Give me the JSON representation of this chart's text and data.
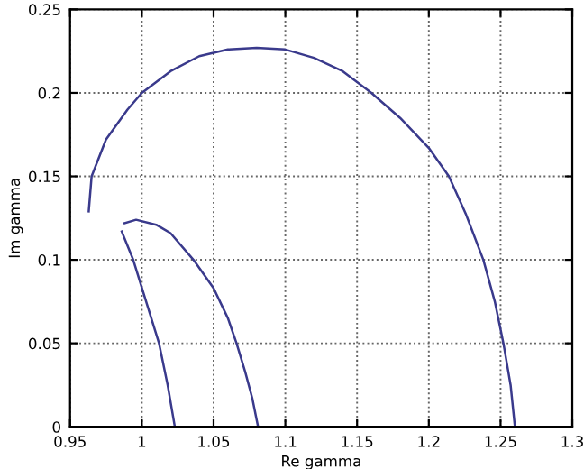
{
  "chart_data": {
    "type": "line",
    "xlabel": "Re gamma",
    "ylabel": "Im gamma",
    "xlim": [
      0.95,
      1.3
    ],
    "xticks": [
      0.95,
      1,
      1.05,
      1.1,
      1.15,
      1.2,
      1.25,
      1.3
    ],
    "ylim": [
      0,
      0.25
    ],
    "yticks": [
      0,
      0.05,
      0.1,
      0.15,
      0.2,
      0.25
    ],
    "grid": true,
    "line_style": "solid",
    "marker": "none",
    "series": [
      {
        "color": "#3a3a8c",
        "x": [
          0.963,
          0.965,
          0.975,
          0.99,
          1.0,
          1.02,
          1.04,
          1.06,
          1.08,
          1.1,
          1.12,
          1.14,
          1.16,
          1.18,
          1.2,
          1.214,
          1.226,
          1.238,
          1.246,
          1.252,
          1.257,
          1.26
        ],
        "values": [
          0.129,
          0.15,
          0.172,
          0.19,
          0.2,
          0.213,
          0.222,
          0.226,
          0.227,
          0.226,
          0.221,
          0.213,
          0.2,
          0.185,
          0.167,
          0.15,
          0.127,
          0.1,
          0.075,
          0.05,
          0.025,
          0.0
        ]
      },
      {
        "color": "#3a3a8c",
        "x": [
          0.988,
          0.996,
          1.01,
          1.02,
          1.036,
          1.05,
          1.06,
          1.066,
          1.072,
          1.077,
          1.081
        ],
        "values": [
          0.122,
          0.124,
          0.121,
          0.116,
          0.1,
          0.083,
          0.065,
          0.05,
          0.033,
          0.017,
          0.0
        ]
      },
      {
        "color": "#3a3a8c",
        "x": [
          0.986,
          0.994,
          1.003,
          1.012,
          1.018,
          1.023
        ],
        "values": [
          0.117,
          0.1,
          0.075,
          0.05,
          0.025,
          0.0
        ]
      }
    ]
  }
}
